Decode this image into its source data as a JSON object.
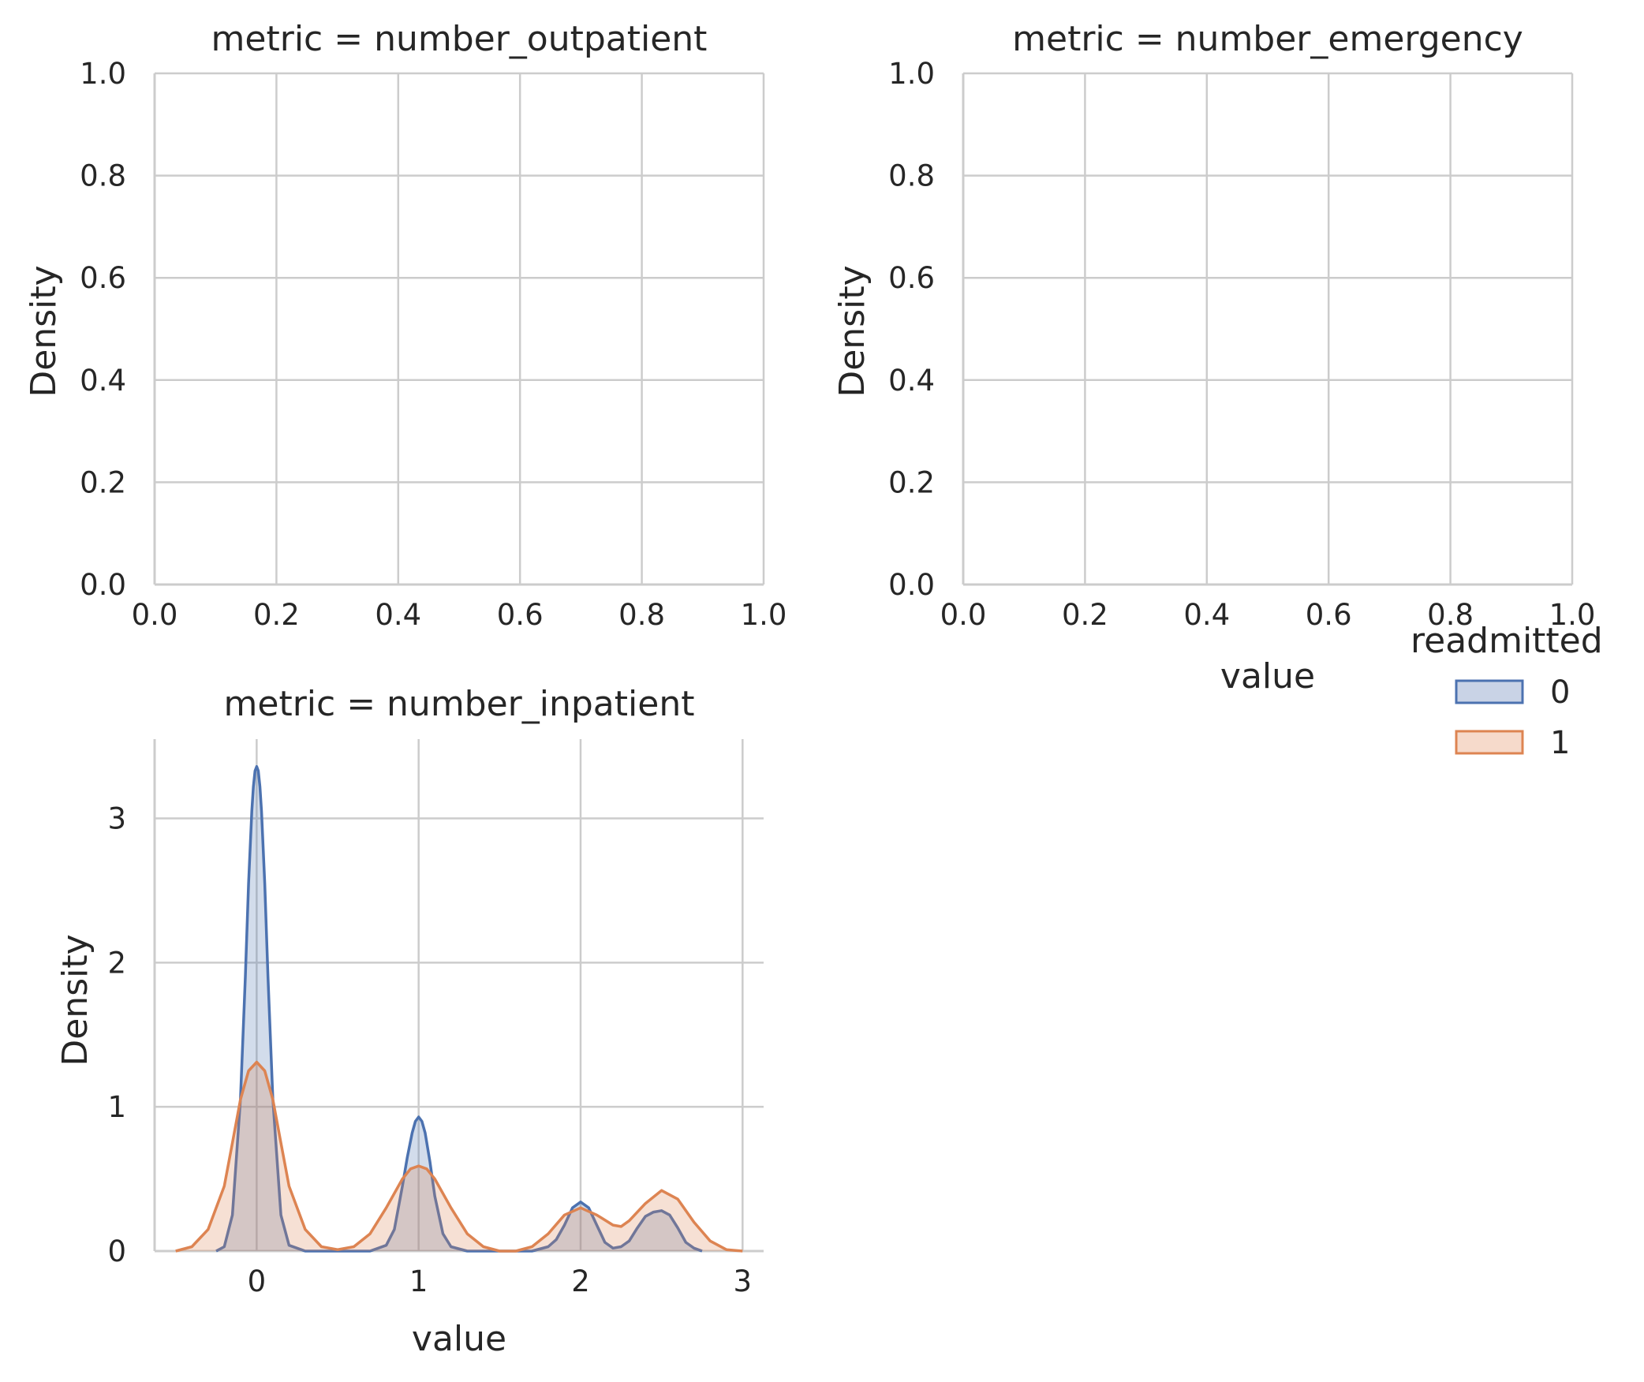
{
  "chart_data": [
    {
      "type": "area",
      "title": "metric = number_outpatient",
      "xlabel": "",
      "ylabel": "Density",
      "xlim": [
        0,
        1
      ],
      "ylim": [
        0,
        1
      ],
      "xticks": [
        "0.0",
        "0.2",
        "0.4",
        "0.6",
        "0.8",
        "1.0"
      ],
      "yticks": [
        "0.0",
        "0.2",
        "0.4",
        "0.6",
        "0.8",
        "1.0"
      ],
      "grid": true,
      "series": []
    },
    {
      "type": "area",
      "title": "metric = number_emergency",
      "xlabel": "value",
      "ylabel": "Density",
      "xlim": [
        0,
        1
      ],
      "ylim": [
        0,
        1
      ],
      "xticks": [
        "0.0",
        "0.2",
        "0.4",
        "0.6",
        "0.8",
        "1.0"
      ],
      "yticks": [
        "0.0",
        "0.2",
        "0.4",
        "0.6",
        "0.8",
        "1.0"
      ],
      "grid": true,
      "series": []
    },
    {
      "type": "area",
      "title": "metric = number_inpatient",
      "xlabel": "value",
      "ylabel": "Density",
      "xlim": [
        -0.63,
        3.13
      ],
      "ylim": [
        0,
        3.55
      ],
      "xticks": [
        "0",
        "1",
        "2",
        "3"
      ],
      "yticks": [
        "0",
        "1",
        "2",
        "3"
      ],
      "grid": true,
      "series": [
        {
          "name": "0",
          "color": "#4c72b0",
          "x": [
            -0.25,
            -0.2,
            -0.15,
            -0.1,
            -0.07,
            -0.05,
            -0.03,
            -0.02,
            -0.01,
            0,
            0.01,
            0.02,
            0.03,
            0.05,
            0.07,
            0.1,
            0.15,
            0.2,
            0.3,
            0.5,
            0.7,
            0.8,
            0.85,
            0.9,
            0.93,
            0.96,
            0.98,
            1,
            1.02,
            1.04,
            1.07,
            1.1,
            1.15,
            1.2,
            1.3,
            1.5,
            1.7,
            1.8,
            1.85,
            1.9,
            1.95,
            2,
            2.05,
            2.1,
            2.15,
            2.2,
            2.25,
            2.3,
            2.35,
            2.4,
            2.45,
            2.5,
            2.55,
            2.6,
            2.65,
            2.7,
            2.75
          ],
          "values": [
            0.0,
            0.03,
            0.25,
            1.05,
            1.9,
            2.55,
            3.05,
            3.22,
            3.33,
            3.36,
            3.33,
            3.22,
            3.05,
            2.55,
            1.9,
            1.05,
            0.25,
            0.04,
            0.0,
            0.0,
            0.0,
            0.04,
            0.15,
            0.45,
            0.65,
            0.82,
            0.9,
            0.93,
            0.9,
            0.82,
            0.62,
            0.38,
            0.12,
            0.03,
            0.0,
            0.0,
            0.0,
            0.03,
            0.08,
            0.18,
            0.3,
            0.34,
            0.3,
            0.18,
            0.06,
            0.02,
            0.03,
            0.07,
            0.16,
            0.24,
            0.27,
            0.28,
            0.25,
            0.16,
            0.06,
            0.02,
            0.0
          ]
        },
        {
          "name": "1",
          "color": "#dd8452",
          "x": [
            -0.5,
            -0.4,
            -0.3,
            -0.2,
            -0.15,
            -0.1,
            -0.05,
            0,
            0.05,
            0.1,
            0.15,
            0.2,
            0.3,
            0.4,
            0.5,
            0.6,
            0.7,
            0.8,
            0.9,
            0.95,
            1,
            1.05,
            1.1,
            1.2,
            1.3,
            1.4,
            1.5,
            1.6,
            1.7,
            1.8,
            1.9,
            2,
            2.1,
            2.2,
            2.25,
            2.3,
            2.4,
            2.5,
            2.6,
            2.7,
            2.8,
            2.9,
            3
          ],
          "values": [
            0.0,
            0.03,
            0.15,
            0.45,
            0.75,
            1.05,
            1.25,
            1.31,
            1.25,
            1.05,
            0.75,
            0.45,
            0.15,
            0.03,
            0.01,
            0.03,
            0.12,
            0.3,
            0.5,
            0.57,
            0.59,
            0.57,
            0.5,
            0.3,
            0.12,
            0.03,
            0.0,
            0.0,
            0.03,
            0.12,
            0.25,
            0.3,
            0.25,
            0.18,
            0.17,
            0.21,
            0.33,
            0.42,
            0.36,
            0.2,
            0.07,
            0.01,
            0.0
          ]
        }
      ]
    }
  ],
  "legend": {
    "title": "readmitted",
    "items": [
      {
        "label": "0",
        "color": "#4c72b0",
        "fill": "#c9d3e6"
      },
      {
        "label": "1",
        "color": "#dd8452",
        "fill": "#f6dacb"
      }
    ]
  }
}
